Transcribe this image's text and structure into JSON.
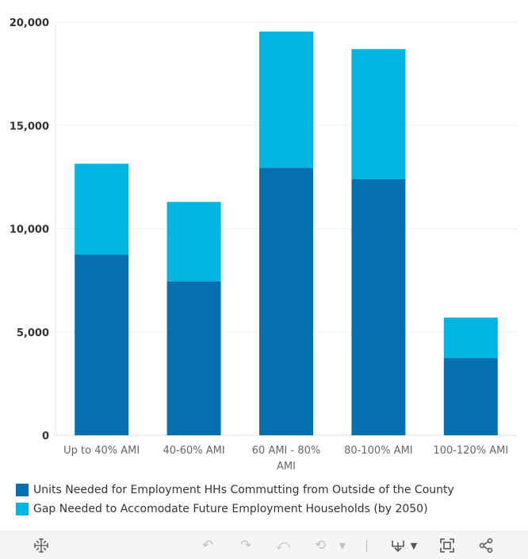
{
  "chart_data": {
    "type": "bar",
    "stacked": true,
    "categories": [
      "Up to 40% AMI",
      "40-60% AMI",
      "60 AMI - 80% AMI",
      "80-100% AMI",
      "100-120% AMI"
    ],
    "category_lines": [
      [
        "Up to 40% AMI"
      ],
      [
        "40-60% AMI"
      ],
      [
        "60 AMI - 80%",
        "AMI"
      ],
      [
        "80-100% AMI"
      ],
      [
        "100-120% AMI"
      ]
    ],
    "series": [
      {
        "name": "Units Needed for Employment HHs Commutting from Outside of the County",
        "color": "#0570b0",
        "values": [
          8750,
          7450,
          12950,
          12400,
          3750
        ]
      },
      {
        "name": "Gap Needed to Accomodate Future Employment Households (by 2050)",
        "color": "#00b5e2",
        "values": [
          4400,
          3850,
          6600,
          6300,
          1950
        ]
      }
    ],
    "yticks": [
      0,
      5000,
      10000,
      15000,
      20000
    ],
    "ytick_labels": [
      "0",
      "5,000",
      "10,000",
      "15,000",
      "20,000"
    ],
    "ylim": [
      0,
      20000
    ],
    "title": "",
    "xlabel": "",
    "ylabel": "",
    "grid": true,
    "legend_position": "bottom-left"
  },
  "legend": {
    "items": [
      {
        "label": "Units Needed for Employment HHs Commutting from Outside of the County",
        "color": "#0570b0"
      },
      {
        "label": "Gap Needed to Accomodate Future Employment Households (by 2050)",
        "color": "#00b5e2"
      }
    ]
  },
  "toolbar": {
    "icons": [
      "tableau-logo-icon",
      "undo-icon",
      "redo-icon",
      "revert-icon",
      "refresh-icon",
      "pause-dropdown-icon",
      "download-icon",
      "download-dropdown-icon",
      "fullscreen-icon",
      "share-icon"
    ]
  }
}
